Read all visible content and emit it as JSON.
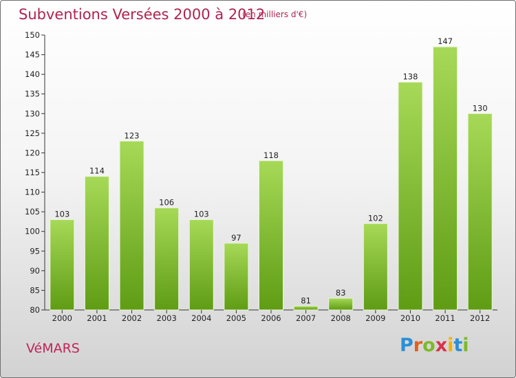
{
  "title": "Subventions Versées 2000 à 2012",
  "subtitle": "(en milliers d'€)",
  "commune": "VéMARS",
  "logo": {
    "letters": [
      "P",
      "r",
      "o",
      "x",
      "i",
      "t",
      "i"
    ],
    "colors": [
      "#2a8fd6",
      "#e35f1c",
      "#7cba2a",
      "#d8334a",
      "#f0b400",
      "#2a8fd6",
      "#7cba2a"
    ]
  },
  "colors": {
    "bar_light": "#a6d957",
    "bar_dark": "#5f9c14",
    "title": "#b0224f"
  },
  "chart_data": {
    "type": "bar",
    "title": "Subventions Versées 2000 à 2012",
    "subtitle": "(en milliers d'€)",
    "xlabel": "",
    "ylabel": "",
    "categories": [
      "2000",
      "2001",
      "2002",
      "2003",
      "2004",
      "2005",
      "2006",
      "2007",
      "2008",
      "2009",
      "2010",
      "2011",
      "2012"
    ],
    "values": [
      103,
      114,
      123,
      106,
      103,
      97,
      118,
      81,
      83,
      102,
      138,
      147,
      130
    ],
    "ylim": [
      80,
      150
    ],
    "yticks": [
      80,
      85,
      90,
      95,
      100,
      105,
      110,
      115,
      120,
      125,
      130,
      135,
      140,
      145,
      150
    ],
    "grid": false,
    "legend": "none"
  }
}
